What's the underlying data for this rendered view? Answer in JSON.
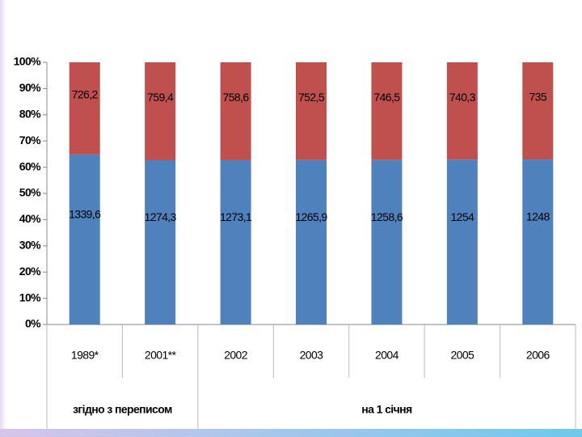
{
  "chart_data": {
    "type": "stacked_percent_bar",
    "categories": [
      "1989*",
      "2001**",
      "2002",
      "2003",
      "2004",
      "2005",
      "2006"
    ],
    "category_groups": [
      {
        "label": "згідно з переписом",
        "count": 2
      },
      {
        "label": "на 1 січня",
        "count": 5
      }
    ],
    "series": [
      {
        "color": "#4f81bd",
        "values": [
          1339.6,
          1274.3,
          1273.1,
          1265.9,
          1258.6,
          1254,
          1248
        ],
        "value_labels": [
          "1339,6",
          "1274,3",
          "1273,1",
          "1265,9",
          "1258,6",
          "1254",
          "1248"
        ]
      },
      {
        "color": "#c0504d",
        "values": [
          726.2,
          759.4,
          758.6,
          752.5,
          746.5,
          740.3,
          735
        ],
        "value_labels": [
          "726,2",
          "759,4",
          "758,6",
          "752,5",
          "746,5",
          "740,3",
          "735"
        ]
      }
    ],
    "ylim": [
      0,
      100
    ],
    "yticks": [
      {
        "value": 0,
        "label": "0%"
      },
      {
        "value": 10,
        "label": "10%"
      },
      {
        "value": 20,
        "label": "20%"
      },
      {
        "value": 30,
        "label": "30%"
      },
      {
        "value": 40,
        "label": "40%"
      },
      {
        "value": 50,
        "label": "50%"
      },
      {
        "value": 60,
        "label": "60%"
      },
      {
        "value": 70,
        "label": "70%"
      },
      {
        "value": 80,
        "label": "80%"
      },
      {
        "value": 90,
        "label": "90%"
      },
      {
        "value": 100,
        "label": "100%"
      }
    ],
    "grid": false
  }
}
